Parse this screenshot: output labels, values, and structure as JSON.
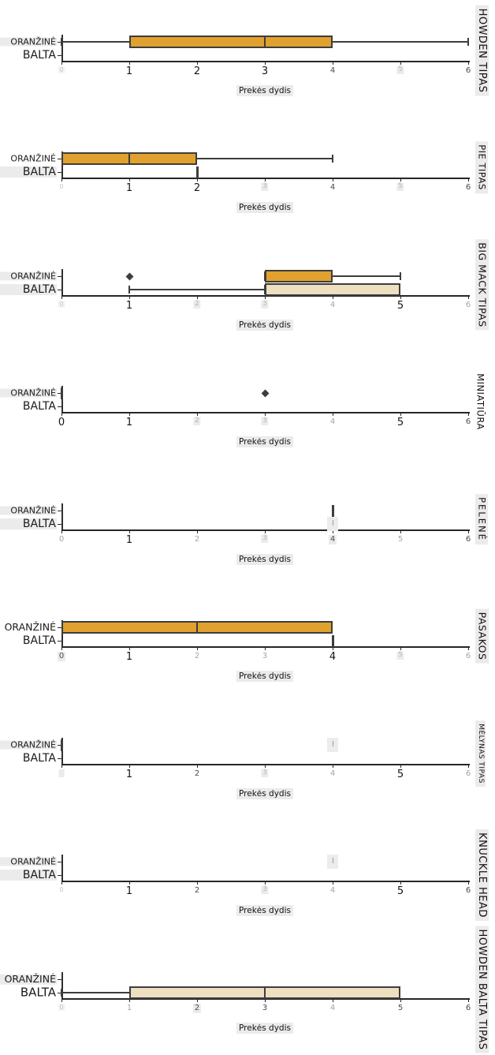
{
  "figure": {
    "xlabel": "Prekės dydis",
    "x_tick_labels": [
      "0",
      "1",
      "2",
      "3",
      "4",
      "5",
      "6"
    ],
    "x_range": [
      0,
      6
    ],
    "categories": [
      "ORANŽINĖ",
      "BALTA"
    ],
    "colors": {
      "orange_fill": "#E0A12E",
      "white_fill": "#EDDFC0",
      "box_edge": "#3D3D3D",
      "axis": "#262626",
      "text": "#141414",
      "muted_text": "#4A4A4A",
      "ghost_text": "#B5B5B5",
      "highlight_bg": "#EBEBEB"
    }
  },
  "chart_data": {
    "type": "boxplot",
    "orientation": "horizontal",
    "x_axis_label": "Prekės dydis",
    "x_range": [
      0,
      6
    ],
    "x_ticks": [
      0,
      1,
      2,
      3,
      4,
      5,
      6
    ],
    "category_axis": [
      "ORANŽINĖ",
      "BALTA"
    ],
    "facets": [
      {
        "facet": "HOWDEN TIPAS",
        "series": [
          {
            "category": "ORANŽINĖ",
            "fill": "#E0A12E",
            "stats": {
              "whisker_low": 0,
              "q1": 1,
              "median": 3,
              "q3": 4,
              "whisker_high": 6
            },
            "outliers": [],
            "single_value": null
          },
          {
            "category": "BALTA",
            "fill": "#EDDFC0",
            "stats": null,
            "outliers": [],
            "single_value": null
          }
        ],
        "style": {
          "facet_label": {
            "size": 13,
            "boxed": true,
            "center": 64,
            "ls": 0.5
          },
          "cat_labels": [
            {
              "boxed": true,
              "size": 11
            },
            {
              "boxed": false,
              "size": 14
            }
          ],
          "ticks": [
            {
              "s": "xs",
              "f": true,
              "b": true
            },
            {
              "s": "lg"
            },
            {
              "s": "lg"
            },
            {
              "s": "lg"
            },
            {
              "s": "sm"
            },
            {
              "s": "ghost",
              "b": true
            },
            {
              "s": "sm"
            }
          ],
          "ghost_marks": []
        }
      },
      {
        "facet": "PIE TIPAS",
        "series": [
          {
            "category": "ORANŽINĖ",
            "fill": "#E0A12E",
            "stats": {
              "whisker_low": 0,
              "q1": 0,
              "median": 1,
              "q3": 2,
              "whisker_high": 4
            },
            "outliers": [],
            "single_value": null
          },
          {
            "category": "BALTA",
            "fill": "#EDDFC0",
            "stats": null,
            "outliers": [],
            "single_value": 2
          }
        ],
        "style": {
          "facet_label": {
            "size": 11.5,
            "boxed": true,
            "center": 64,
            "ls": 0.5
          },
          "cat_labels": [
            {
              "boxed": false,
              "size": 11
            },
            {
              "boxed": true,
              "size": 14
            }
          ],
          "ticks": [
            {
              "s": "xs",
              "f": true
            },
            {
              "s": "lg"
            },
            {
              "s": "lg"
            },
            {
              "s": "ghost",
              "b": true
            },
            {
              "s": "sm"
            },
            {
              "s": "ghost",
              "b": true
            },
            {
              "s": "sm"
            }
          ],
          "ghost_marks": []
        }
      },
      {
        "facet": "BIG MACK TIPAS",
        "series": [
          {
            "category": "ORANŽINĖ",
            "fill": "#E0A12E",
            "stats": {
              "whisker_low": 3,
              "q1": 3,
              "median": 3,
              "q3": 4,
              "whisker_high": 5
            },
            "outliers": [
              1
            ],
            "single_value": null
          },
          {
            "category": "BALTA",
            "fill": "#EDDFC0",
            "stats": {
              "whisker_low": 1,
              "q1": 3,
              "median": 3,
              "q3": 5,
              "whisker_high": 5
            },
            "outliers": [],
            "single_value": null
          }
        ],
        "style": {
          "facet_label": {
            "size": 12.5,
            "boxed": true,
            "center": 64,
            "ls": 0.5
          },
          "cat_labels": [
            {
              "boxed": true,
              "size": 11
            },
            {
              "boxed": true,
              "size": 14
            }
          ],
          "ticks": [
            {
              "s": "xs",
              "f": true,
              "b": true
            },
            {
              "s": "lg"
            },
            {
              "s": "ghost",
              "b": true
            },
            {
              "s": "ghost",
              "b": true
            },
            {
              "s": "sm",
              "f": true
            },
            {
              "s": "lg"
            },
            {
              "s": "sm",
              "f": true
            }
          ],
          "ghost_marks": []
        }
      },
      {
        "facet": "MINIATIŪRA",
        "series": [
          {
            "category": "ORANŽINĖ",
            "fill": "#E0A12E",
            "stats": null,
            "outliers": [
              3
            ],
            "single_value": 0
          },
          {
            "category": "BALTA",
            "fill": "#EDDFC0",
            "stats": null,
            "outliers": [],
            "single_value": null
          }
        ],
        "style": {
          "facet_label": {
            "size": 11.5,
            "boxed": false,
            "center": 64,
            "ls": 0.5
          },
          "cat_labels": [
            {
              "boxed": true,
              "size": 11
            },
            {
              "boxed": false,
              "size": 14
            }
          ],
          "ticks": [
            {
              "s": "lg"
            },
            {
              "s": "lg"
            },
            {
              "s": "ghost",
              "b": true
            },
            {
              "s": "ghost",
              "b": true
            },
            {
              "s": "sm",
              "f": true
            },
            {
              "s": "lg"
            },
            {
              "s": "sm"
            }
          ],
          "ghost_marks": []
        }
      },
      {
        "facet": "PELENĖ",
        "series": [
          {
            "category": "ORANŽINĖ",
            "fill": "#E0A12E",
            "stats": null,
            "outliers": [],
            "single_value": 4
          },
          {
            "category": "BALTA",
            "fill": "#EDDFC0",
            "stats": null,
            "outliers": [],
            "single_value": null
          }
        ],
        "style": {
          "facet_label": {
            "size": 11.5,
            "boxed": true,
            "center": 64,
            "ls": 2
          },
          "cat_labels": [
            {
              "boxed": true,
              "size": 11
            },
            {
              "boxed": true,
              "size": 14
            }
          ],
          "ticks": [
            {
              "s": "sm",
              "f": true
            },
            {
              "s": "lg"
            },
            {
              "s": "sm",
              "f": true
            },
            {
              "s": "ghost",
              "b": true
            },
            {
              "s": "sm",
              "b": true
            },
            {
              "s": "sm",
              "f": true
            },
            {
              "s": "sm"
            }
          ],
          "ghost_marks": [
            {
              "x": 4,
              "row": 1
            }
          ]
        }
      },
      {
        "facet": "PASAKOS",
        "series": [
          {
            "category": "ORANŽINĖ",
            "fill": "#E0A12E",
            "stats": {
              "whisker_low": 0,
              "q1": 0,
              "median": 2,
              "q3": 4,
              "whisker_high": 4
            },
            "outliers": [],
            "single_value": null
          },
          {
            "category": "BALTA",
            "fill": "#EDDFC0",
            "stats": null,
            "outliers": [],
            "single_value": 4
          }
        ],
        "style": {
          "facet_label": {
            "size": 12.5,
            "boxed": true,
            "center": 64,
            "ls": 0.5
          },
          "cat_labels": [
            {
              "boxed": false,
              "size": 12.5
            },
            {
              "boxed": false,
              "size": 14
            }
          ],
          "ticks": [
            {
              "s": "sm",
              "b": true
            },
            {
              "s": "lg"
            },
            {
              "s": "sm",
              "f": true
            },
            {
              "s": "sm",
              "f": true
            },
            {
              "s": "lg"
            },
            {
              "s": "ghost",
              "b": true
            },
            {
              "s": "sm",
              "f": true
            }
          ],
          "ghost_marks": []
        }
      },
      {
        "facet": "MĖLYNAS TIPAS",
        "series": [
          {
            "category": "ORANŽINĖ",
            "fill": "#E0A12E",
            "stats": null,
            "outliers": [],
            "single_value": 0
          },
          {
            "category": "BALTA",
            "fill": "#EDDFC0",
            "stats": null,
            "outliers": [],
            "single_value": null
          }
        ],
        "style": {
          "facet_label": {
            "size": 9,
            "boxed": true,
            "center": 64,
            "ls": 0.5
          },
          "cat_labels": [
            {
              "boxed": true,
              "size": 11
            },
            {
              "boxed": false,
              "size": 14
            }
          ],
          "ticks": [
            {
              "s": "ghost",
              "b": true,
              "h": true
            },
            {
              "s": "lg"
            },
            {
              "s": "sm"
            },
            {
              "s": "ghost",
              "b": true
            },
            {
              "s": "sm",
              "f": true
            },
            {
              "s": "lg"
            },
            {
              "s": "sm",
              "f": true
            }
          ],
          "ghost_marks": [
            {
              "x": 4,
              "row": 0
            }
          ]
        }
      },
      {
        "facet": "KNUCKLE HEAD",
        "series": [
          {
            "category": "ORANŽINĖ",
            "fill": "#E0A12E",
            "stats": null,
            "outliers": [],
            "single_value": null
          },
          {
            "category": "BALTA",
            "fill": "#EDDFC0",
            "stats": null,
            "outliers": [],
            "single_value": null
          }
        ],
        "style": {
          "facet_label": {
            "size": 13,
            "boxed": true,
            "center": 70,
            "ls": 0.5
          },
          "cat_labels": [
            {
              "boxed": true,
              "size": 11
            },
            {
              "boxed": true,
              "size": 14
            }
          ],
          "ticks": [
            {
              "s": "xs",
              "f": true
            },
            {
              "s": "lg"
            },
            {
              "s": "sm"
            },
            {
              "s": "ghost",
              "b": true
            },
            {
              "s": "sm",
              "f": true
            },
            {
              "s": "lg"
            },
            {
              "s": "sm"
            }
          ],
          "ghost_marks": [
            {
              "x": 4,
              "row": 0
            }
          ]
        }
      },
      {
        "facet": "HOWDEN BALTA TIPAS",
        "series": [
          {
            "category": "ORANŽINĖ",
            "fill": "#E0A12E",
            "stats": null,
            "outliers": [],
            "single_value": null
          },
          {
            "category": "BALTA",
            "fill": "#EDDFC0",
            "stats": {
              "whisker_low": 0,
              "q1": 1,
              "median": 3,
              "q3": 5,
              "whisker_high": 5
            },
            "outliers": [],
            "single_value": null
          }
        ],
        "style": {
          "facet_label": {
            "size": 13,
            "boxed": true,
            "center": 66,
            "ls": 0.5
          },
          "cat_labels": [
            {
              "boxed": true,
              "size": 12.5
            },
            {
              "boxed": false,
              "size": 15
            }
          ],
          "ticks": [
            {
              "s": "xs",
              "f": true,
              "b": true
            },
            {
              "s": "sm",
              "f": true
            },
            {
              "s": "sm",
              "b": true
            },
            {
              "s": "sm"
            },
            {
              "s": "sm",
              "f": true
            },
            {
              "s": "sm"
            },
            {
              "s": "sm"
            }
          ],
          "ghost_marks": []
        }
      }
    ]
  }
}
